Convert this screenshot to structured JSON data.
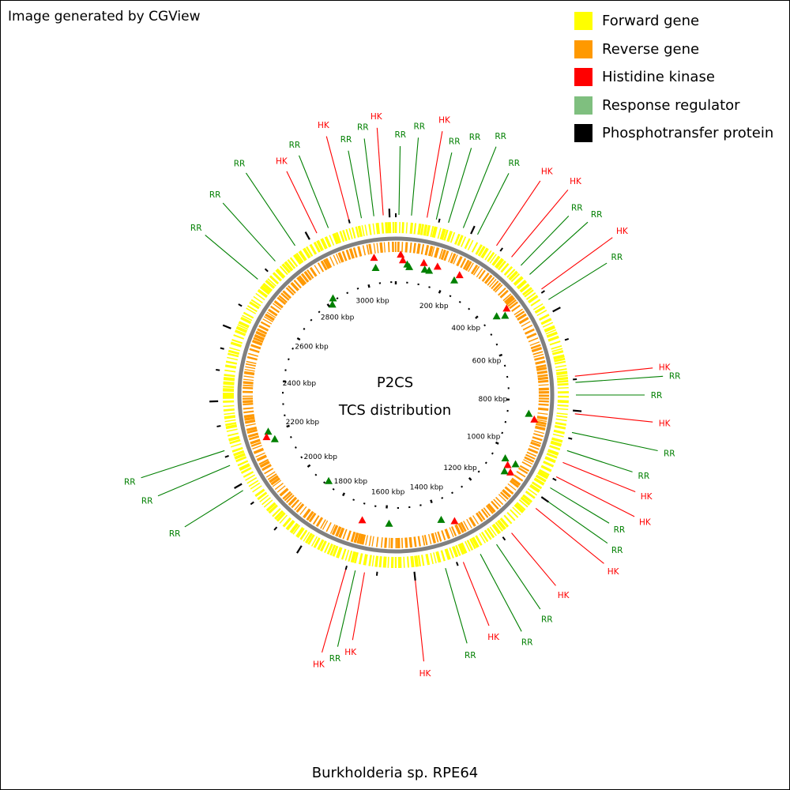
{
  "credit": "Image generated by CGView",
  "legend": [
    {
      "label": "Forward gene",
      "color": "#ffff00"
    },
    {
      "label": "Reverse gene",
      "color": "#ff9900"
    },
    {
      "label": "Histidine kinase",
      "color": "#ff0000"
    },
    {
      "label": "Response regulator",
      "color": "#7fbf7f"
    },
    {
      "label": "Phosphotransfer protein",
      "color": "#000000"
    }
  ],
  "center": {
    "line1": "P2CS",
    "line2": "TCS distribution"
  },
  "organism": "Burkholderia sp. RPE64",
  "genome": {
    "length_kbp": 3120,
    "tick_unit": "kbp",
    "ticks": [
      200,
      400,
      600,
      800,
      1000,
      1200,
      1400,
      1600,
      1800,
      2000,
      2200,
      2400,
      2600,
      2800,
      3000
    ]
  },
  "colors": {
    "hk": "#ff0000",
    "rr": "#008000",
    "rr_label": "#007f00",
    "ring": "#808080",
    "forward": "#ffff00",
    "reverse": "#ff9900"
  },
  "annotations": [
    {
      "label": "HK",
      "type": "hk"
    },
    {
      "label": "RR",
      "type": "rr"
    },
    {
      "label": "HK",
      "type": "hk"
    },
    {
      "label": "RR",
      "type": "rr"
    },
    {
      "label": "RR",
      "type": "rr"
    },
    {
      "label": "HK",
      "type": "hk"
    },
    {
      "label": "RR",
      "type": "rr"
    },
    {
      "label": "RR",
      "type": "rr"
    },
    {
      "label": "HK",
      "type": "hk"
    },
    {
      "label": "RR",
      "type": "rr"
    },
    {
      "label": "RR",
      "type": "rr"
    },
    {
      "label": "RR",
      "type": "rr"
    },
    {
      "label": "RR",
      "type": "rr"
    },
    {
      "label": "HK",
      "type": "hk"
    },
    {
      "label": "HK",
      "type": "hk"
    },
    {
      "label": "RR",
      "type": "rr"
    },
    {
      "label": "RR",
      "type": "rr"
    },
    {
      "label": "HK",
      "type": "hk"
    },
    {
      "label": "RR",
      "type": "rr"
    },
    {
      "label": "HK",
      "type": "hk"
    },
    {
      "label": "RR",
      "type": "rr"
    },
    {
      "label": "RR",
      "type": "rr"
    },
    {
      "label": "HK",
      "type": "hk"
    },
    {
      "label": "RR",
      "type": "rr"
    },
    {
      "label": "RR",
      "type": "rr"
    },
    {
      "label": "HK",
      "type": "hk"
    },
    {
      "label": "HK",
      "type": "hk"
    },
    {
      "label": "RR",
      "type": "rr"
    },
    {
      "label": "RR",
      "type": "rr"
    },
    {
      "label": "HK",
      "type": "hk"
    },
    {
      "label": "HK",
      "type": "hk"
    },
    {
      "label": "RR",
      "type": "rr"
    },
    {
      "label": "RR",
      "type": "rr"
    },
    {
      "label": "HK",
      "type": "hk"
    },
    {
      "label": "RR",
      "type": "rr"
    },
    {
      "label": "HK",
      "type": "hk"
    },
    {
      "label": "HK",
      "type": "hk"
    },
    {
      "label": "RR",
      "type": "rr"
    },
    {
      "label": "HK",
      "type": "hk"
    },
    {
      "label": "RR",
      "type": "rr"
    },
    {
      "label": "RR",
      "type": "rr"
    },
    {
      "label": "RR",
      "type": "rr"
    },
    {
      "label": "RR",
      "type": "rr"
    },
    {
      "label": "RR",
      "type": "rr"
    },
    {
      "label": "RR",
      "type": "rr"
    }
  ]
}
